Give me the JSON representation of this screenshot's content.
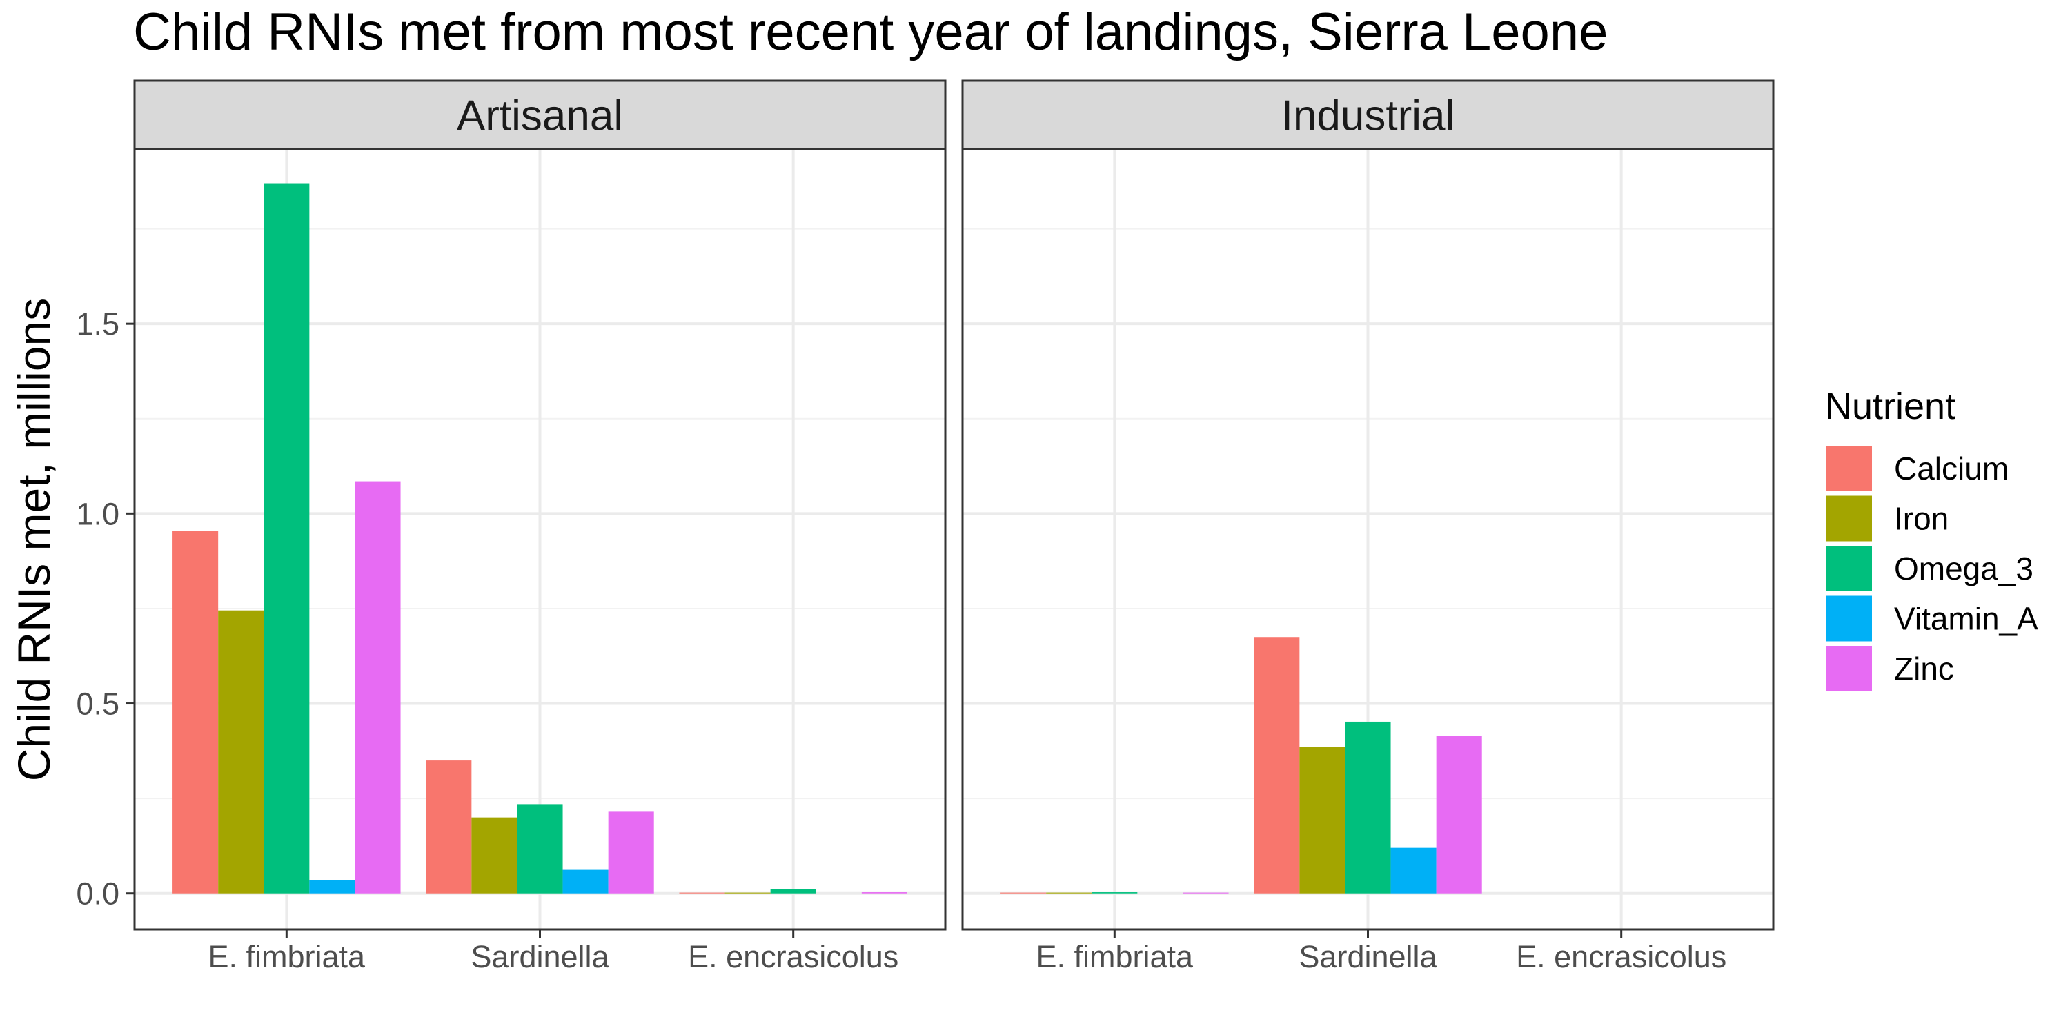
{
  "chart_data": {
    "type": "bar",
    "title": "Child RNIs met from most recent year of landings, Sierra Leone",
    "ylabel": "Child RNIs met, millions",
    "xlabel": "",
    "ylim": [
      -0.095,
      1.96
    ],
    "yticks": [
      0.0,
      0.5,
      1.0,
      1.5
    ],
    "ytick_labels": [
      "0.0",
      "0.5",
      "1.0",
      "1.5"
    ],
    "grid": true,
    "categories": [
      "E. fimbriata",
      "Sardinella",
      "E. encrasicolus"
    ],
    "legend": {
      "title": "Nutrient",
      "position": "right",
      "entries": [
        {
          "name": "Calcium",
          "color": "#F8766D"
        },
        {
          "name": "Iron",
          "color": "#A3A500"
        },
        {
          "name": "Omega_3",
          "color": "#00BF7D"
        },
        {
          "name": "Vitamin_A",
          "color": "#00B0F6"
        },
        {
          "name": "Zinc",
          "color": "#E76BF3"
        }
      ]
    },
    "panels": [
      {
        "label": "Artisanal",
        "series": [
          {
            "name": "Calcium",
            "values": [
              0.955,
              0.35,
              0.002
            ]
          },
          {
            "name": "Iron",
            "values": [
              0.745,
              0.2,
              0.002
            ]
          },
          {
            "name": "Omega_3",
            "values": [
              1.87,
              0.235,
              0.012
            ]
          },
          {
            "name": "Vitamin_A",
            "values": [
              0.035,
              0.062,
              0.0
            ]
          },
          {
            "name": "Zinc",
            "values": [
              1.085,
              0.215,
              0.003
            ]
          }
        ]
      },
      {
        "label": "Industrial",
        "series": [
          {
            "name": "Calcium",
            "values": [
              0.002,
              0.675,
              0.0
            ]
          },
          {
            "name": "Iron",
            "values": [
              0.002,
              0.385,
              0.0
            ]
          },
          {
            "name": "Omega_3",
            "values": [
              0.003,
              0.452,
              0.0
            ]
          },
          {
            "name": "Vitamin_A",
            "values": [
              0.0,
              0.12,
              0.0
            ]
          },
          {
            "name": "Zinc",
            "values": [
              0.002,
              0.415,
              0.0
            ]
          }
        ]
      }
    ]
  }
}
